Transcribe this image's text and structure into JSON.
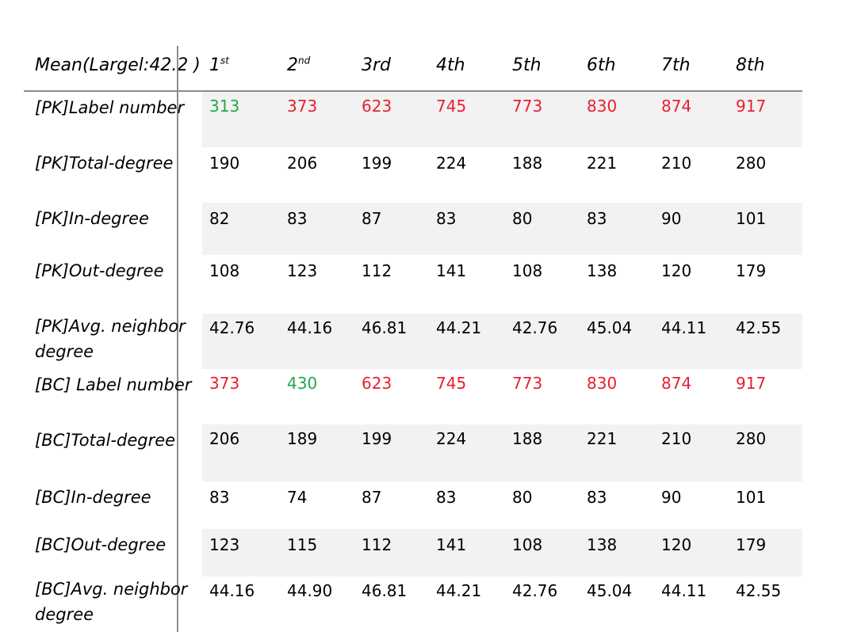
{
  "table": {
    "corner": "Mean(Largel:42.2 )",
    "headers": [
      {
        "base": "1",
        "sup": "st"
      },
      {
        "base": "2",
        "sup": "nd"
      },
      {
        "base": "3rd",
        "sup": ""
      },
      {
        "base": "4th",
        "sup": ""
      },
      {
        "base": "5th",
        "sup": ""
      },
      {
        "base": "6th",
        "sup": ""
      },
      {
        "base": "7th",
        "sup": ""
      },
      {
        "base": "8th",
        "sup": ""
      }
    ],
    "rows": [
      {
        "label": "[PK]Label number",
        "values": [
          "313",
          "373",
          "623",
          "745",
          "773",
          "830",
          "874",
          "917"
        ],
        "colors": [
          "green",
          "red",
          "red",
          "red",
          "red",
          "red",
          "red",
          "red"
        ],
        "shaded": true
      },
      {
        "label": "[PK]Total-degree",
        "values": [
          "190",
          "206",
          "199",
          "224",
          "188",
          "221",
          "210",
          "280"
        ],
        "shaded": false
      },
      {
        "label": "[PK]In-degree",
        "values": [
          "82",
          "83",
          "87",
          "83",
          "80",
          "83",
          "90",
          "101"
        ],
        "shaded": true
      },
      {
        "label": "[PK]Out-degree",
        "values": [
          "108",
          "123",
          "112",
          "141",
          "108",
          "138",
          "120",
          "179"
        ],
        "shaded": false
      },
      {
        "label": "[PK]Avg. neighbor degree",
        "values": [
          "42.76",
          "44.16",
          "46.81",
          "44.21",
          "42.76",
          "45.04",
          "44.11",
          "42.55"
        ],
        "shaded": true
      },
      {
        "label": "[BC] Label number",
        "values": [
          "373",
          "430",
          "623",
          "745",
          "773",
          "830",
          "874",
          "917"
        ],
        "colors": [
          "red",
          "green",
          "red",
          "red",
          "red",
          "red",
          "red",
          "red"
        ],
        "shaded": false
      },
      {
        "label": "[BC]Total-degree",
        "values": [
          "206",
          "189",
          "199",
          "224",
          "188",
          "221",
          "210",
          "280"
        ],
        "shaded": true
      },
      {
        "label": "[BC]In-degree",
        "values": [
          "83",
          "74",
          "87",
          "83",
          "80",
          "83",
          "90",
          "101"
        ],
        "shaded": false
      },
      {
        "label": "[BC]Out-degree",
        "values": [
          "123",
          "115",
          "112",
          "141",
          "108",
          "138",
          "120",
          "179"
        ],
        "shaded": true
      },
      {
        "label": "[BC]Avg. neighbor degree",
        "values": [
          "44.16",
          "44.90",
          "46.81",
          "44.21",
          "42.76",
          "45.04",
          "44.11",
          "42.55"
        ],
        "shaded": false
      }
    ]
  }
}
